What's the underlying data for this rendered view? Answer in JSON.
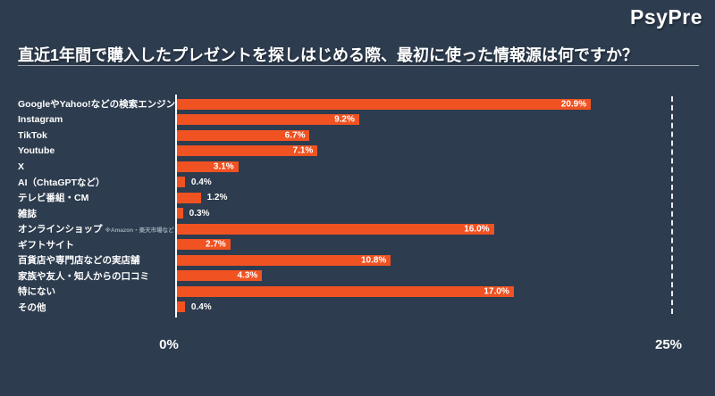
{
  "header": {
    "logo": "PsyPre",
    "title": "直近1年間で購入したプレゼントを探しはじめる際、最初に使った情報源は何ですか？"
  },
  "colors": {
    "background": "#2d3c4e",
    "bar": "#f05222",
    "text": "#ffffff",
    "note_text": "#9aa7b5"
  },
  "chart_data": {
    "type": "bar",
    "orientation": "horizontal",
    "title": "直近1年間で購入したプレゼントを探しはじめる際、最初に使った情報源は何ですか？",
    "categories": [
      "GoogleやYahoo!などの検索エンジン",
      "Instagram",
      "TikTok",
      "Youtube",
      "X",
      "AI（ChtaGPTなど）",
      "テレビ番組・CM",
      "雑誌",
      "オンラインショップ",
      "ギフトサイト",
      "百貨店や専門店などの実店舗",
      "家族や友人・知人からの口コミ",
      "特にない",
      "その他"
    ],
    "values": [
      20.9,
      9.2,
      6.7,
      7.1,
      3.1,
      0.4,
      1.2,
      0.3,
      16.0,
      2.7,
      10.8,
      4.3,
      17.0,
      0.4
    ],
    "value_labels": [
      "20.9%",
      "9.2%",
      "6.7%",
      "7.1%",
      "3.1%",
      "0.4%",
      "1.2%",
      "0.3%",
      "16.0%",
      "2.7%",
      "10.8%",
      "4.3%",
      "17.0%",
      "0.4%"
    ],
    "category_notes": {
      "8": "※Amazon・楽天市場など"
    },
    "xlabel": "",
    "ylabel": "",
    "xlim": [
      0,
      25
    ],
    "x_ticks": [
      "0%",
      "25%"
    ],
    "grid": "single dashed line at 25%",
    "legend": "none",
    "bar_color": "#f05222"
  }
}
